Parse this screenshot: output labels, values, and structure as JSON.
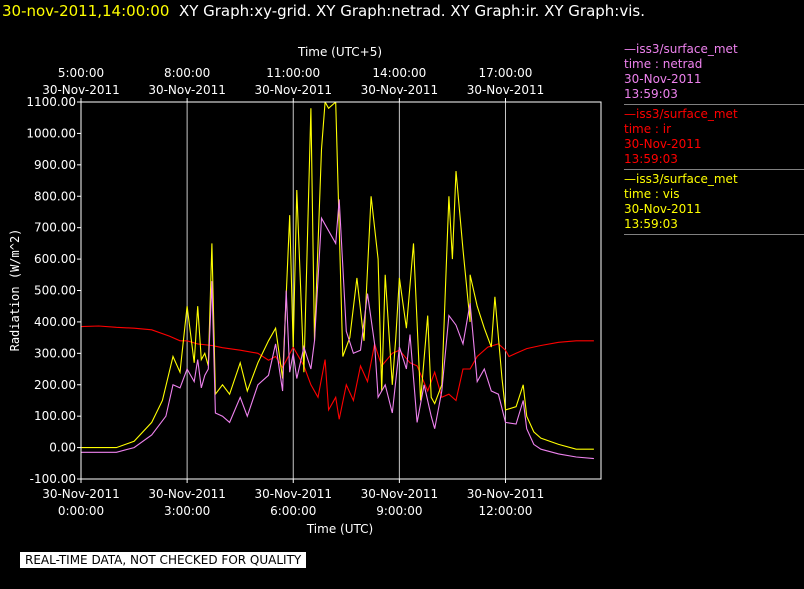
{
  "header": {
    "timestamp": "30-nov-2011,14:00:00",
    "titles": "XY Graph:xy-grid.  XY Graph:netrad.  XY Graph:ir.  XY Graph:vis."
  },
  "footer": {
    "text": "REAL-TIME DATA, NOT CHECKED FOR QUALITY"
  },
  "legend": [
    {
      "line1": "—iss3/surface_met",
      "line2": "time : netrad",
      "line3": "30-Nov-2011",
      "line4": "13:59:03",
      "color": "#ee82ee"
    },
    {
      "line1": "—iss3/surface_met",
      "line2": "time : ir",
      "line3": "30-Nov-2011",
      "line4": "13:59:03",
      "color": "#ff0000"
    },
    {
      "line1": "—iss3/surface_met",
      "line2": "time : vis",
      "line3": "30-Nov-2011",
      "line4": "13:59:03",
      "color": "#ffff00"
    }
  ],
  "chart_data": {
    "type": "line",
    "xlabel": "Time (UTC)",
    "xlabel_top": "Time (UTC+5)",
    "ylabel": "Radiation (W/m^2)",
    "xlim": [
      0,
      14.7
    ],
    "ylim": [
      -100,
      1100
    ],
    "yticks": [
      -100,
      0,
      100,
      200,
      300,
      400,
      500,
      600,
      700,
      800,
      900,
      1000,
      1100
    ],
    "ytick_labels": [
      "-100.00",
      "0.00",
      "100.00",
      "200.00",
      "300.00",
      "400.00",
      "500.00",
      "600.00",
      "700.00",
      "800.00",
      "900.00",
      "1000.00",
      "1100.00"
    ],
    "xticks": [
      {
        "x": 0,
        "date": "30-Nov-2011",
        "time": "0:00:00"
      },
      {
        "x": 3,
        "date": "30-Nov-2011",
        "time": "3:00:00"
      },
      {
        "x": 6,
        "date": "30-Nov-2011",
        "time": "6:00:00"
      },
      {
        "x": 9,
        "date": "30-Nov-2011",
        "time": "9:00:00"
      },
      {
        "x": 12,
        "date": "30-Nov-2011",
        "time": "12:00:00"
      }
    ],
    "xticks_top": [
      {
        "x": 0,
        "time": "5:00:00",
        "date": "30-Nov-2011"
      },
      {
        "x": 3,
        "time": "8:00:00",
        "date": "30-Nov-2011"
      },
      {
        "x": 6,
        "time": "11:00:00",
        "date": "30-Nov-2011"
      },
      {
        "x": 9,
        "time": "14:00:00",
        "date": "30-Nov-2011"
      },
      {
        "x": 12,
        "time": "17:00:00",
        "date": "30-Nov-2011"
      }
    ],
    "grid": true,
    "series": [
      {
        "name": "time : ir",
        "color": "#ff0000",
        "points": [
          [
            0,
            385
          ],
          [
            0.5,
            387
          ],
          [
            1,
            383
          ],
          [
            1.5,
            380
          ],
          [
            2,
            375
          ],
          [
            2.5,
            355
          ],
          [
            2.8,
            340
          ],
          [
            3,
            340
          ],
          [
            3.3,
            330
          ],
          [
            3.7,
            325
          ],
          [
            4,
            318
          ],
          [
            4.5,
            310
          ],
          [
            5,
            300
          ],
          [
            5.3,
            278
          ],
          [
            5.5,
            290
          ],
          [
            5.7,
            255
          ],
          [
            6,
            320
          ],
          [
            6.3,
            260
          ],
          [
            6.5,
            200
          ],
          [
            6.7,
            160
          ],
          [
            6.9,
            280
          ],
          [
            7,
            120
          ],
          [
            7.2,
            160
          ],
          [
            7.3,
            90
          ],
          [
            7.5,
            200
          ],
          [
            7.7,
            150
          ],
          [
            7.9,
            260
          ],
          [
            8.1,
            210
          ],
          [
            8.3,
            330
          ],
          [
            8.5,
            260
          ],
          [
            8.8,
            300
          ],
          [
            9,
            310
          ],
          [
            9.3,
            270
          ],
          [
            9.5,
            260
          ],
          [
            9.8,
            180
          ],
          [
            10,
            240
          ],
          [
            10.2,
            160
          ],
          [
            10.4,
            170
          ],
          [
            10.6,
            150
          ],
          [
            10.8,
            250
          ],
          [
            11,
            250
          ],
          [
            11.2,
            290
          ],
          [
            11.5,
            320
          ],
          [
            11.8,
            330
          ],
          [
            12,
            310
          ],
          [
            12.1,
            290
          ],
          [
            12.3,
            300
          ],
          [
            12.6,
            315
          ],
          [
            13,
            325
          ],
          [
            13.5,
            335
          ],
          [
            14,
            340
          ],
          [
            14.5,
            340
          ]
        ]
      },
      {
        "name": "time : vis",
        "color": "#ffff00",
        "points": [
          [
            0,
            0
          ],
          [
            1,
            0
          ],
          [
            1.5,
            20
          ],
          [
            2,
            80
          ],
          [
            2.3,
            150
          ],
          [
            2.6,
            290
          ],
          [
            2.8,
            240
          ],
          [
            3,
            450
          ],
          [
            3.2,
            270
          ],
          [
            3.3,
            450
          ],
          [
            3.4,
            280
          ],
          [
            3.5,
            300
          ],
          [
            3.6,
            260
          ],
          [
            3.7,
            650
          ],
          [
            3.8,
            170
          ],
          [
            4,
            200
          ],
          [
            4.2,
            170
          ],
          [
            4.5,
            270
          ],
          [
            4.7,
            180
          ],
          [
            5,
            270
          ],
          [
            5.3,
            340
          ],
          [
            5.5,
            380
          ],
          [
            5.7,
            220
          ],
          [
            5.9,
            740
          ],
          [
            6,
            320
          ],
          [
            6.1,
            820
          ],
          [
            6.3,
            240
          ],
          [
            6.5,
            1080
          ],
          [
            6.6,
            340
          ],
          [
            6.8,
            950
          ],
          [
            6.9,
            1100
          ],
          [
            7,
            1080
          ],
          [
            7.2,
            1100
          ],
          [
            7.4,
            290
          ],
          [
            7.6,
            350
          ],
          [
            7.8,
            540
          ],
          [
            8,
            340
          ],
          [
            8.2,
            800
          ],
          [
            8.4,
            600
          ],
          [
            8.5,
            180
          ],
          [
            8.6,
            550
          ],
          [
            8.8,
            200
          ],
          [
            8.9,
            350
          ],
          [
            9,
            540
          ],
          [
            9.2,
            380
          ],
          [
            9.4,
            650
          ],
          [
            9.6,
            150
          ],
          [
            9.8,
            420
          ],
          [
            9.9,
            160
          ],
          [
            10,
            140
          ],
          [
            10.2,
            200
          ],
          [
            10.4,
            800
          ],
          [
            10.5,
            600
          ],
          [
            10.6,
            880
          ],
          [
            10.8,
            630
          ],
          [
            11,
            400
          ],
          [
            11,
            550
          ],
          [
            11.2,
            450
          ],
          [
            11.4,
            380
          ],
          [
            11.6,
            320
          ],
          [
            11.7,
            480
          ],
          [
            11.9,
            220
          ],
          [
            12,
            120
          ],
          [
            12.3,
            130
          ],
          [
            12.5,
            200
          ],
          [
            12.6,
            100
          ],
          [
            12.8,
            50
          ],
          [
            13,
            30
          ],
          [
            13.5,
            10
          ],
          [
            14,
            -5
          ],
          [
            14.5,
            -5
          ]
        ]
      },
      {
        "name": "time : netrad",
        "color": "#ee82ee",
        "points": [
          [
            0,
            -15
          ],
          [
            1,
            -15
          ],
          [
            1.5,
            0
          ],
          [
            2,
            40
          ],
          [
            2.4,
            100
          ],
          [
            2.6,
            200
          ],
          [
            2.8,
            190
          ],
          [
            3,
            250
          ],
          [
            3.2,
            210
          ],
          [
            3.3,
            280
          ],
          [
            3.4,
            190
          ],
          [
            3.5,
            230
          ],
          [
            3.6,
            250
          ],
          [
            3.7,
            530
          ],
          [
            3.8,
            110
          ],
          [
            4,
            100
          ],
          [
            4.2,
            80
          ],
          [
            4.5,
            160
          ],
          [
            4.7,
            100
          ],
          [
            5,
            200
          ],
          [
            5.3,
            230
          ],
          [
            5.5,
            330
          ],
          [
            5.7,
            180
          ],
          [
            5.8,
            500
          ],
          [
            5.9,
            240
          ],
          [
            6,
            300
          ],
          [
            6.1,
            220
          ],
          [
            6.3,
            320
          ],
          [
            6.5,
            250
          ],
          [
            6.6,
            340
          ],
          [
            6.8,
            730
          ],
          [
            7,
            690
          ],
          [
            7.2,
            650
          ],
          [
            7.3,
            790
          ],
          [
            7.5,
            370
          ],
          [
            7.7,
            300
          ],
          [
            7.9,
            310
          ],
          [
            8.1,
            490
          ],
          [
            8.3,
            330
          ],
          [
            8.4,
            160
          ],
          [
            8.6,
            200
          ],
          [
            8.8,
            110
          ],
          [
            9,
            320
          ],
          [
            9.2,
            250
          ],
          [
            9.3,
            360
          ],
          [
            9.5,
            80
          ],
          [
            9.7,
            200
          ],
          [
            9.9,
            100
          ],
          [
            10,
            60
          ],
          [
            10.2,
            180
          ],
          [
            10.4,
            420
          ],
          [
            10.6,
            390
          ],
          [
            10.8,
            330
          ],
          [
            11,
            460
          ],
          [
            11.2,
            210
          ],
          [
            11.4,
            250
          ],
          [
            11.6,
            180
          ],
          [
            11.8,
            170
          ],
          [
            12,
            80
          ],
          [
            12.3,
            75
          ],
          [
            12.5,
            150
          ],
          [
            12.6,
            60
          ],
          [
            12.8,
            10
          ],
          [
            13,
            -5
          ],
          [
            13.5,
            -20
          ],
          [
            14,
            -30
          ],
          [
            14.5,
            -35
          ]
        ]
      }
    ]
  }
}
